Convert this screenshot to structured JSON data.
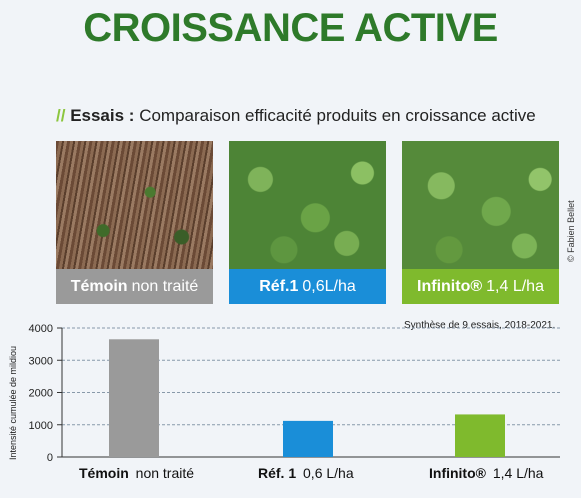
{
  "header": {
    "title": "CROISSANCE ACTIVE",
    "subtitle_prefix": "//",
    "subtitle_bold": "Essais :",
    "subtitle_rest": "Comparaison efficacité produits en croissance active"
  },
  "photos": [
    {
      "label_bold": "Témoin",
      "label_rest": "non traité",
      "color": "#9a9a9a"
    },
    {
      "label_bold": "Réf.1",
      "label_rest": "0,6L/ha",
      "color": "#1a8ed8"
    },
    {
      "label_bold": "Infinito®",
      "label_rest": "1,4 L/ha",
      "color": "#7fba2d"
    }
  ],
  "credit": "© Fabien Bellet",
  "chart_data": {
    "type": "bar",
    "note": "Synthèse de 9 essais, 2018-2021.",
    "ylabel": "Intensité cumulée de mildiou",
    "ylim": [
      0,
      4000
    ],
    "yticks": [
      "0",
      "1000",
      "2000",
      "3000",
      "4000"
    ],
    "categories": [
      {
        "bold": "Témoin",
        "rest": "non traité"
      },
      {
        "bold": "Réf. 1",
        "rest": "0,6 L/ha"
      },
      {
        "bold": "Infinito®",
        "rest": "1,4 L/ha"
      }
    ],
    "values": [
      3650,
      1120,
      1320
    ],
    "colors": [
      "#9a9a9a",
      "#1a8ed8",
      "#7fba2d"
    ]
  }
}
